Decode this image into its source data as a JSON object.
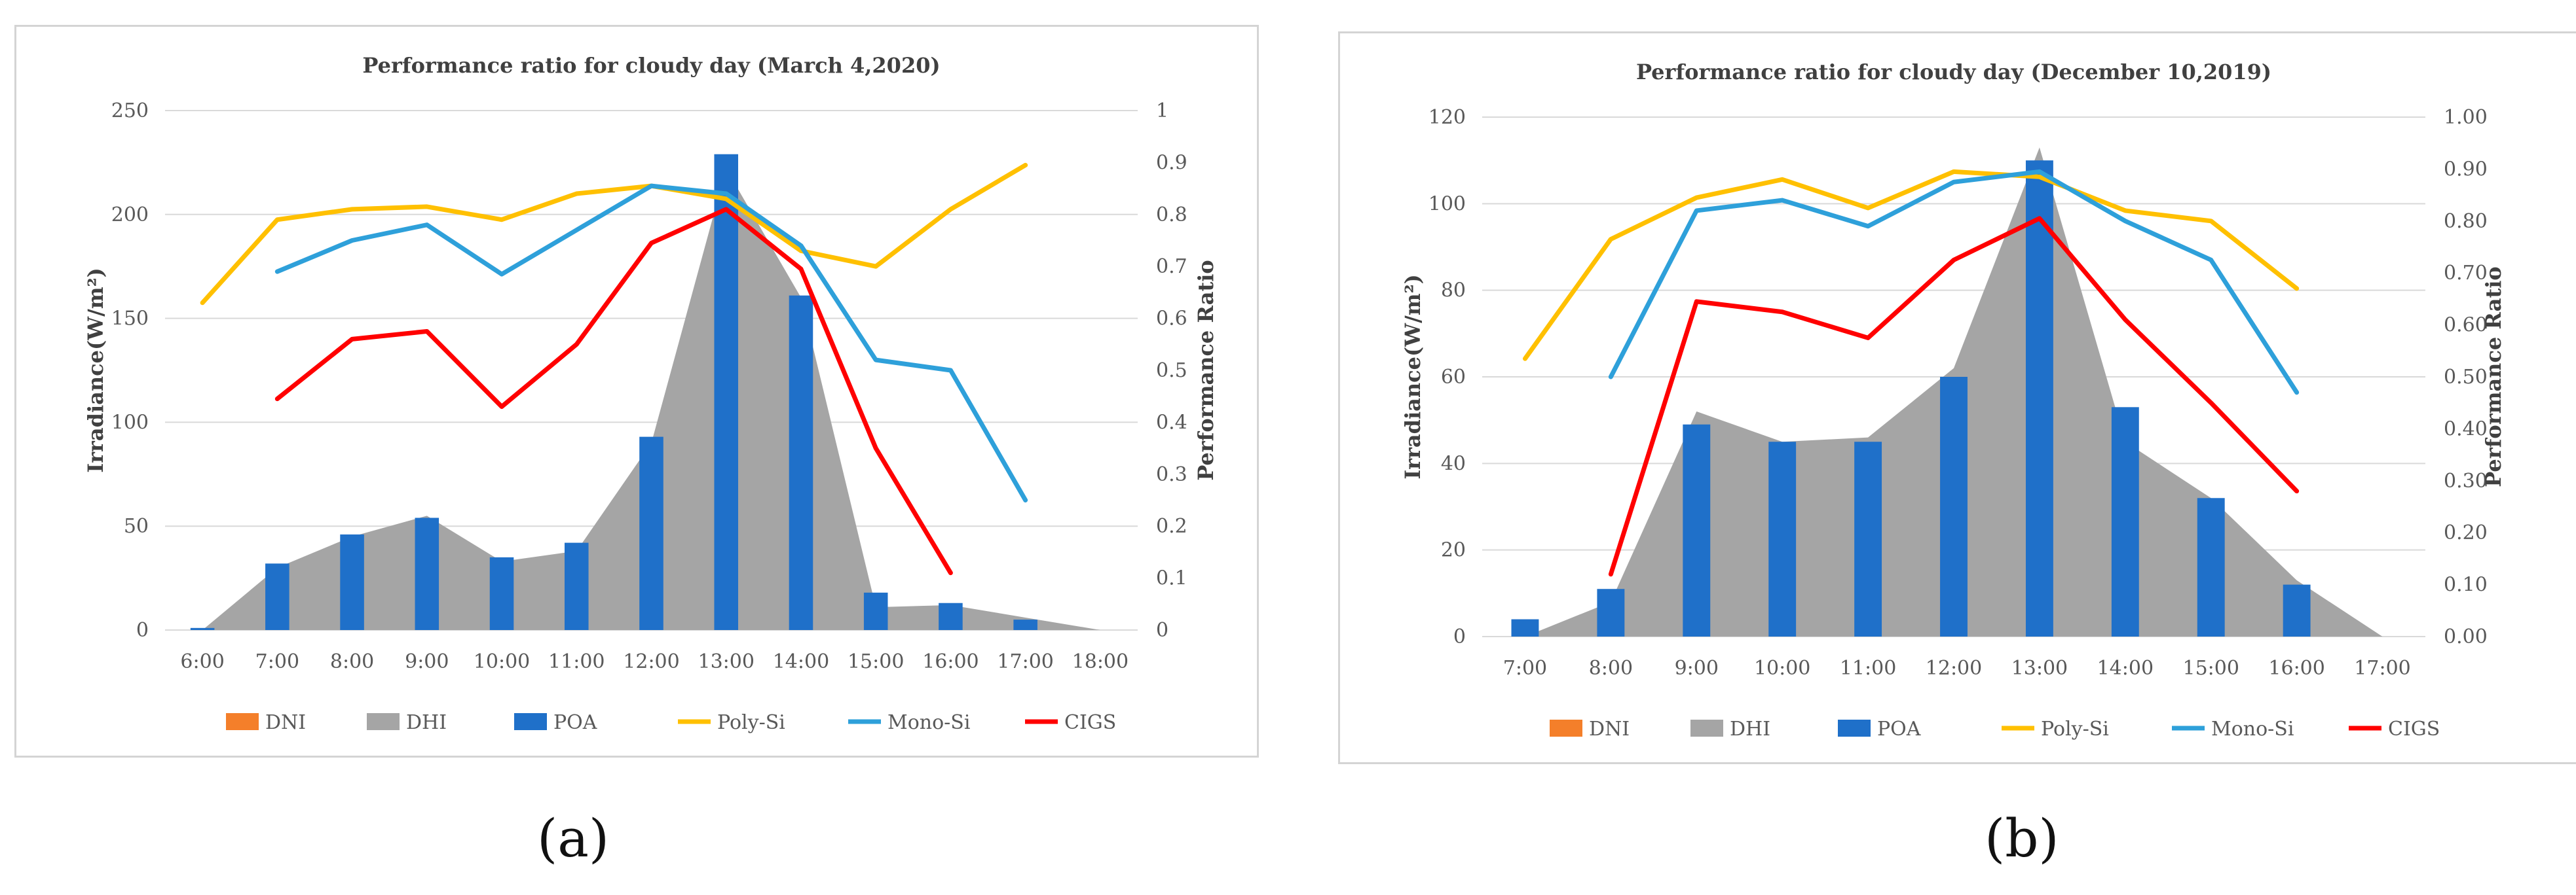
{
  "subfigure_labels": [
    "(a)",
    "(b)"
  ],
  "colors": {
    "DNI": "#f47f2a",
    "DHI": "#a5a5a5",
    "POA": "#1f70c9",
    "Poly-Si": "#ffc000",
    "Mono-Si": "#2ea0da",
    "CIGS": "#ff0000"
  },
  "chart_data": [
    {
      "type": "bar",
      "title": "Performance ratio for cloudy day (March 4,2020)",
      "categories": [
        "6:00",
        "7:00",
        "8:00",
        "9:00",
        "10:00",
        "11:00",
        "12:00",
        "13:00",
        "14:00",
        "15:00",
        "16:00",
        "17:00",
        "18:00"
      ],
      "ylabel": "Irradiance(W/m²)",
      "y2label": "Performance Ratio",
      "ylim": [
        0,
        250
      ],
      "yticks": [
        "0",
        "50",
        "100",
        "150",
        "200",
        "250"
      ],
      "y2lim": [
        0,
        1
      ],
      "y2ticks": [
        "0",
        "0.1",
        "0.2",
        "0.3",
        "0.4",
        "0.5",
        "0.6",
        "0.7",
        "0.8",
        "0.9",
        "1"
      ],
      "legend": [
        "DNI",
        "DHI",
        "POA",
        "Poly-Si",
        "Mono-Si",
        "CIGS"
      ],
      "series": [
        {
          "name": "DNI",
          "kind": "bar",
          "axis": "left",
          "values": [
            0,
            0,
            0,
            0,
            0,
            0,
            0,
            0,
            0,
            0,
            0,
            0,
            0
          ]
        },
        {
          "name": "DHI",
          "kind": "area",
          "axis": "left",
          "values": [
            0,
            30,
            45,
            55,
            33,
            38,
            90,
            222,
            160,
            11,
            12,
            6,
            0
          ]
        },
        {
          "name": "POA",
          "kind": "bar",
          "axis": "left",
          "values": [
            1,
            32,
            46,
            54,
            35,
            42,
            93,
            229,
            161,
            18,
            13,
            5,
            0
          ]
        },
        {
          "name": "Poly-Si",
          "kind": "line",
          "axis": "right",
          "values": [
            0.63,
            0.79,
            0.81,
            0.815,
            0.79,
            0.84,
            0.855,
            0.83,
            0.73,
            0.7,
            0.81,
            0.895,
            null
          ]
        },
        {
          "name": "Mono-Si",
          "kind": "line",
          "axis": "right",
          "values": [
            null,
            0.69,
            0.75,
            0.78,
            0.685,
            0.77,
            0.855,
            0.84,
            0.74,
            0.52,
            0.5,
            0.25,
            null
          ]
        },
        {
          "name": "CIGS",
          "kind": "line",
          "axis": "right",
          "values": [
            null,
            0.445,
            0.56,
            0.575,
            0.43,
            0.55,
            0.745,
            0.81,
            0.695,
            0.35,
            0.11,
            null,
            null
          ]
        }
      ]
    },
    {
      "type": "bar",
      "title": "Performance ratio for cloudy day (December 10,2019)",
      "categories": [
        "7:00",
        "8:00",
        "9:00",
        "10:00",
        "11:00",
        "12:00",
        "13:00",
        "14:00",
        "15:00",
        "16:00",
        "17:00"
      ],
      "ylabel": "Irradiance(W/m²)",
      "y2label": "Performance Ratio",
      "ylim": [
        0,
        120
      ],
      "yticks": [
        "0",
        "20",
        "40",
        "60",
        "80",
        "100",
        "120"
      ],
      "y2lim": [
        0,
        1
      ],
      "y2ticks": [
        "0.00",
        "0.10",
        "0.20",
        "0.30",
        "0.40",
        "0.50",
        "0.60",
        "0.70",
        "0.80",
        "0.90",
        "1.00"
      ],
      "legend": [
        "DNI",
        "DHI",
        "POA",
        "Poly-Si",
        "Mono-Si",
        "CIGS"
      ],
      "series": [
        {
          "name": "DNI",
          "kind": "bar",
          "axis": "left",
          "values": [
            0,
            0,
            0,
            0,
            0,
            0,
            0,
            0,
            0,
            0,
            0
          ]
        },
        {
          "name": "DHI",
          "kind": "area",
          "axis": "left",
          "values": [
            0,
            8,
            52,
            45,
            46,
            62,
            113,
            45,
            32,
            13,
            0
          ]
        },
        {
          "name": "POA",
          "kind": "bar",
          "axis": "left",
          "values": [
            4,
            11,
            49,
            45,
            45,
            60,
            110,
            53,
            32,
            12,
            0
          ]
        },
        {
          "name": "Poly-Si",
          "kind": "line",
          "axis": "right",
          "values": [
            0.535,
            0.765,
            0.845,
            0.88,
            0.825,
            0.895,
            0.885,
            0.82,
            0.8,
            0.67,
            null
          ]
        },
        {
          "name": "Mono-Si",
          "kind": "line",
          "axis": "right",
          "values": [
            null,
            0.5,
            0.82,
            0.84,
            0.79,
            0.875,
            0.895,
            0.8,
            0.725,
            0.47,
            null
          ]
        },
        {
          "name": "CIGS",
          "kind": "line",
          "axis": "right",
          "values": [
            null,
            0.12,
            0.645,
            0.625,
            0.575,
            0.725,
            0.805,
            0.61,
            0.45,
            0.28,
            null
          ]
        }
      ]
    }
  ]
}
